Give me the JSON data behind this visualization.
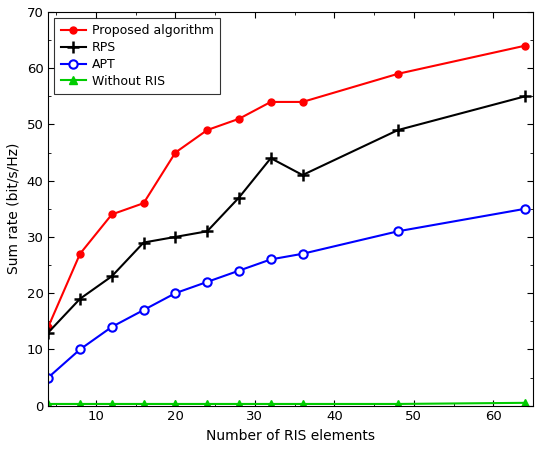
{
  "x_values": [
    4,
    8,
    12,
    16,
    20,
    24,
    28,
    32,
    36,
    48,
    64
  ],
  "proposed": [
    14,
    27,
    34,
    36,
    45,
    49,
    51,
    54,
    54,
    59,
    64
  ],
  "rps": [
    13,
    19,
    23,
    29,
    30,
    31,
    37,
    44,
    41,
    49,
    55
  ],
  "apt": [
    5,
    10,
    14,
    17,
    20,
    22,
    24,
    26,
    27,
    31,
    35
  ],
  "without_ris": [
    0.3,
    0.3,
    0.3,
    0.3,
    0.3,
    0.3,
    0.3,
    0.3,
    0.3,
    0.3,
    0.5
  ],
  "proposed_color": "#FF0000",
  "rps_color": "#000000",
  "apt_color": "#0000FF",
  "without_ris_color": "#00CC00",
  "xlabel": "Number of RIS elements",
  "ylabel": "Sum rate (bit/s/Hz)",
  "ylim": [
    0,
    70
  ],
  "xlim": [
    4,
    65
  ],
  "yticks": [
    0,
    10,
    20,
    30,
    40,
    50,
    60,
    70
  ],
  "xticks": [
    10,
    20,
    30,
    40,
    50,
    60
  ],
  "legend_labels": [
    "Proposed algorithm",
    "RPS",
    "APT",
    "Without RIS"
  ],
  "figsize": [
    5.4,
    4.5
  ],
  "dpi": 100
}
